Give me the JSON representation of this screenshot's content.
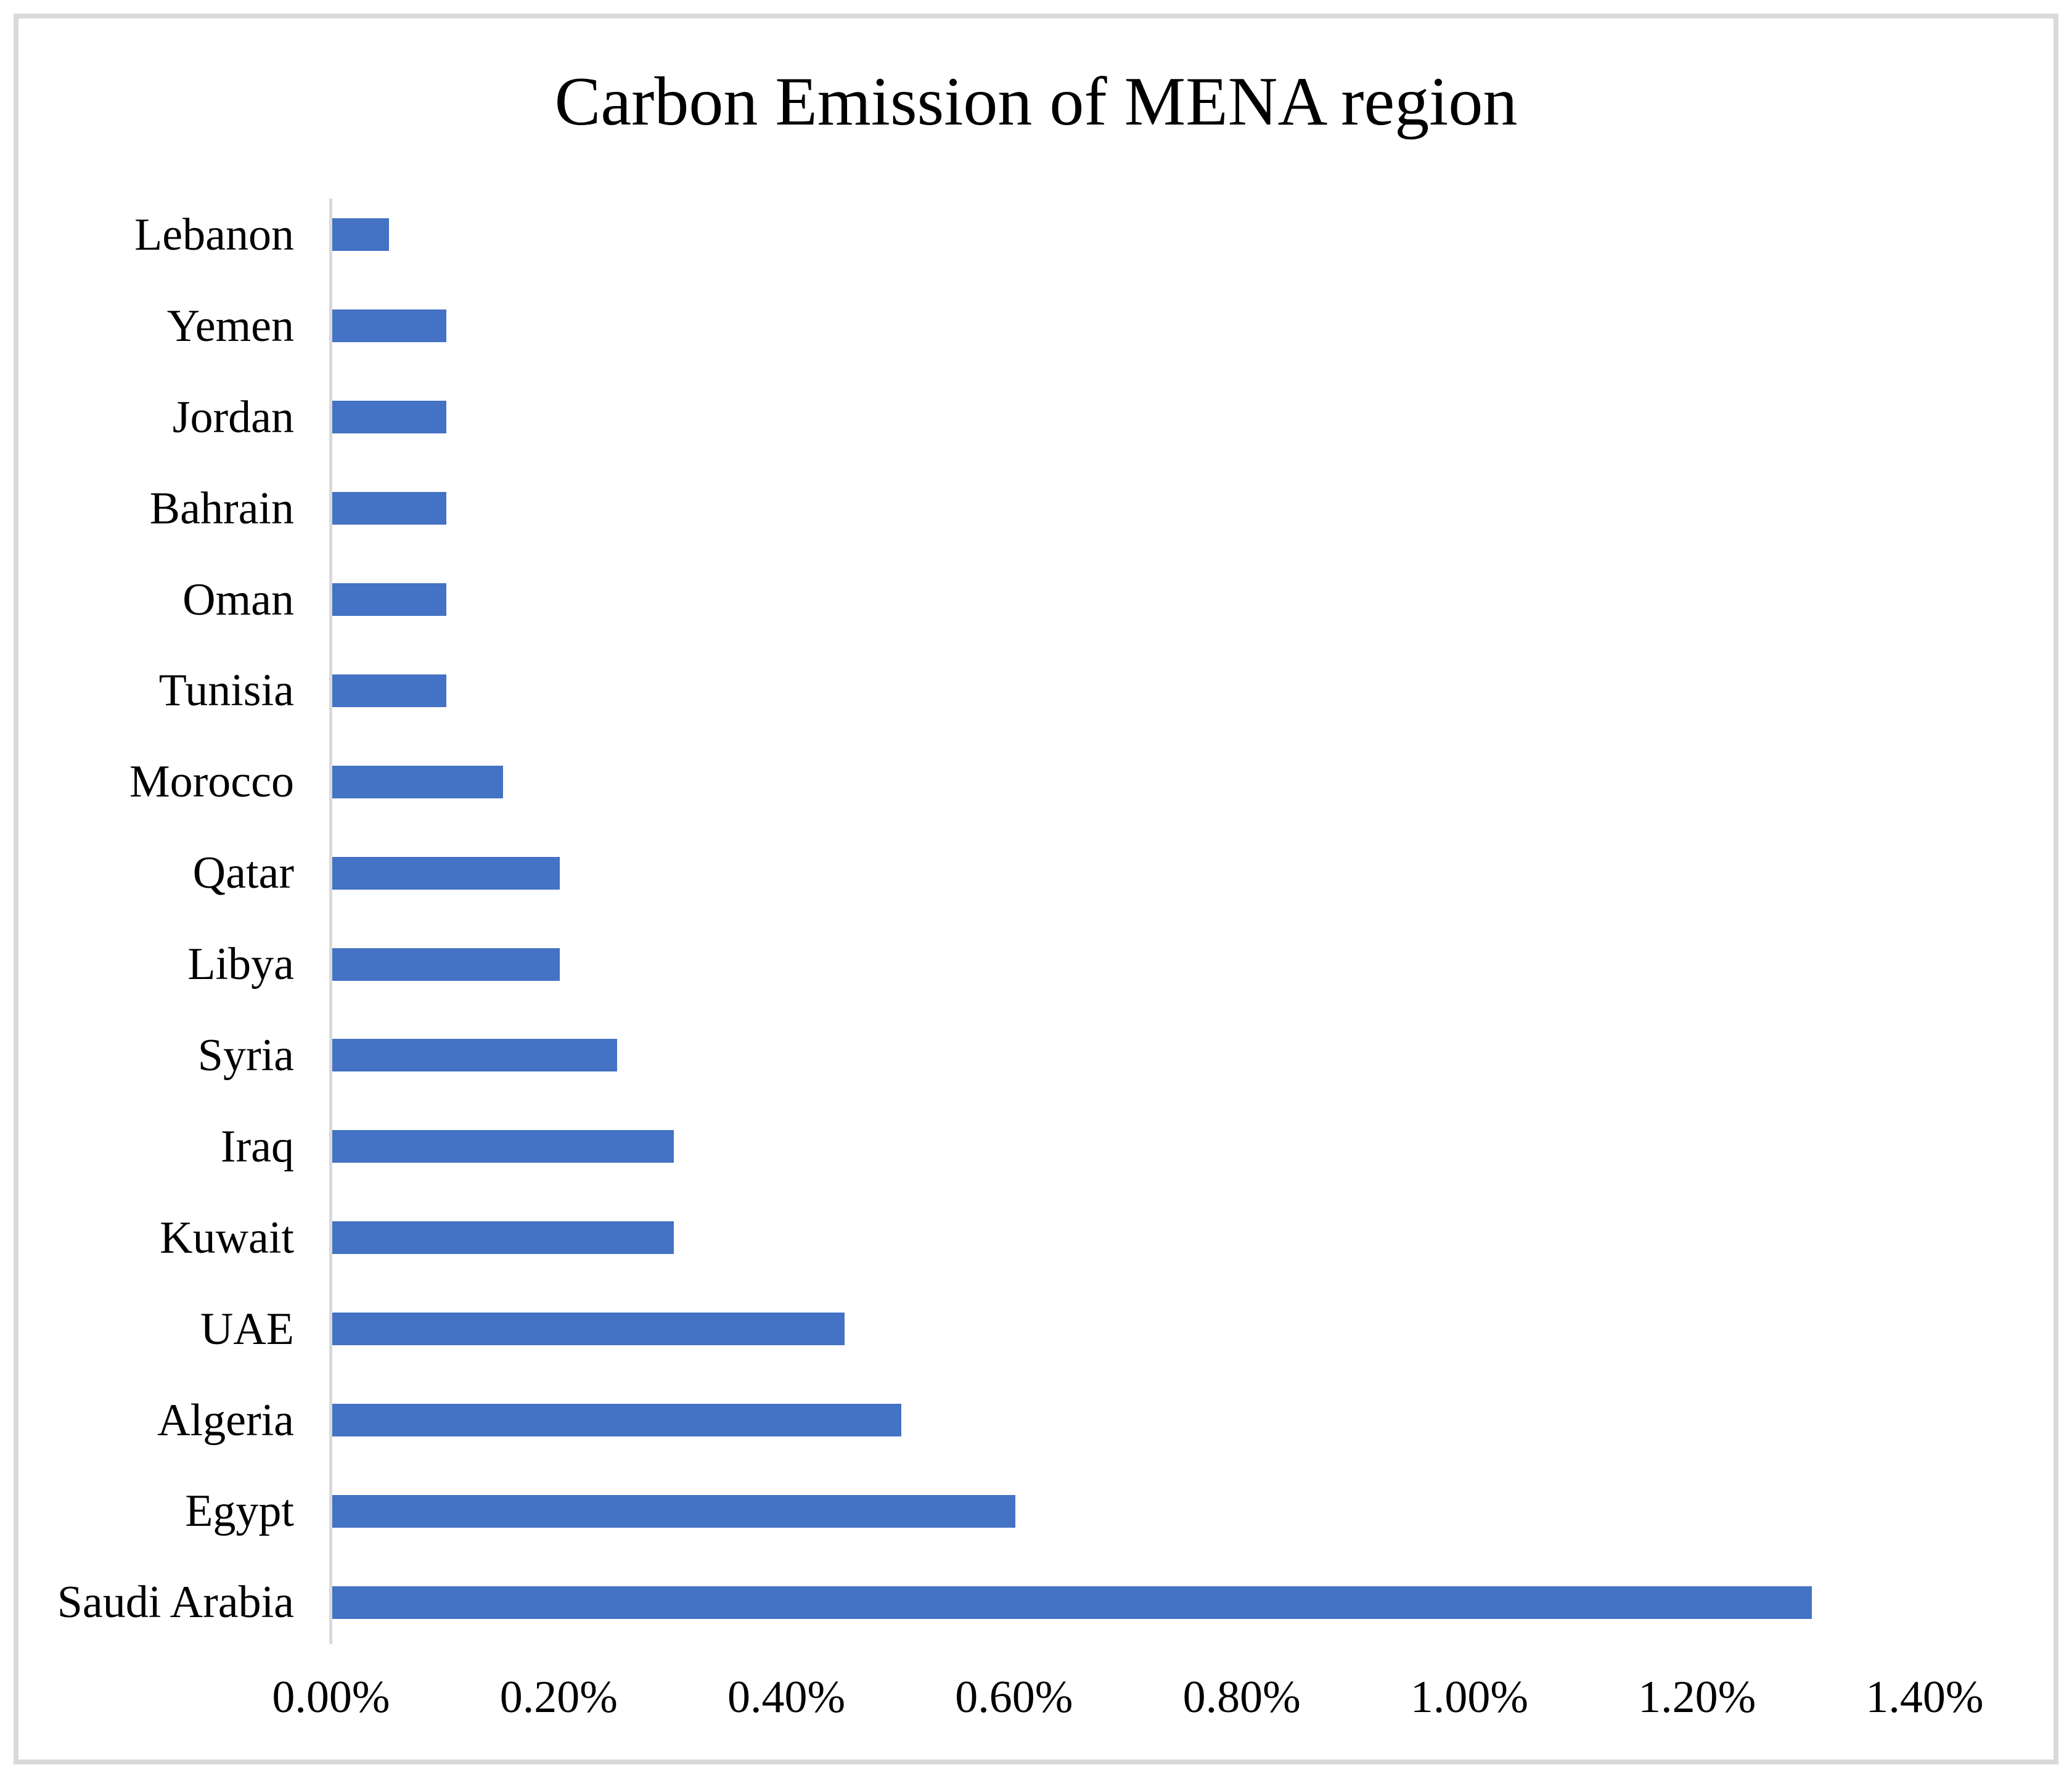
{
  "title": "Carbon Emission of MENA region",
  "chart_data": {
    "type": "bar",
    "orientation": "horizontal",
    "title": "Carbon Emission of MENA region",
    "xlabel": "",
    "ylabel": "",
    "unit": "%",
    "categories": [
      "Lebanon",
      "Yemen",
      "Jordan",
      "Bahrain",
      "Oman",
      "Tunisia",
      "Morocco",
      "Qatar",
      "Libya",
      "Syria",
      "Iraq",
      "Kuwait",
      "UAE",
      "Algeria",
      "Egypt",
      "Saudi Arabia"
    ],
    "values": [
      0.05,
      0.1,
      0.1,
      0.1,
      0.1,
      0.1,
      0.15,
      0.2,
      0.2,
      0.25,
      0.3,
      0.3,
      0.45,
      0.5,
      0.6,
      1.3
    ],
    "xlim": [
      0,
      1.4
    ],
    "x_tick_labels": [
      "0.00%",
      "0.20%",
      "0.40%",
      "0.60%",
      "0.80%",
      "1.00%",
      "1.20%",
      "1.40%"
    ],
    "grid": false,
    "legend": false,
    "bar_color": "#4472C4",
    "axis_color": "#D9D9D9",
    "text_color": "#000000",
    "background_color": "#FFFFFF"
  },
  "layout_note": "horizontal bar chart, category labels left of gray vertical axis, percent ticks along bottom"
}
